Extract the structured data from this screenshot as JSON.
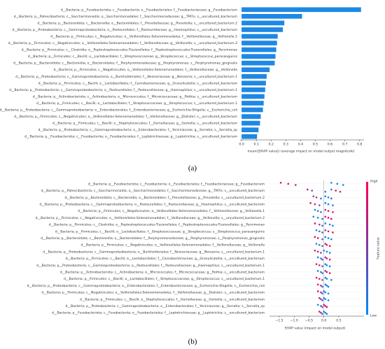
{
  "chart_data": [
    {
      "type": "bar",
      "categories": [
        "d__Bacteria; p__Fusobacteriota; c__Fusobacteriia; o__Fusobacteriales; f__Fusobacteriaceae; g__Fusobacterium",
        "d__Bacteria; p__Patescibacteria; c__Saccharimonadia; o__Saccharimonadales; f__Saccharimonadaceae; g__TM7x; s__uncultured_bacterium",
        "d__Bacteria; p__Bacteroidota; c__Bacteroidia; o__Bacteroidales; f__Prevotellaceae; g__Prevotella; s__uncultured_bacterium.2",
        "d__Bacteria; p__Proteobacteria; c__Gammaproteobacteria; o__Pasteurellales; f__Pasteurellaceae; g__Haemophilus; s__uncultured_bacterium",
        "d__Bacteria; p__Firmicutes; c__Negativicutes; o__Veillonellales-Selenomonadales; f__Veillonellaceae; g__Veillonella.1",
        "d__Bacteria; p__Firmicutes; c__Negativicutes; o__Veillonellales-Selenomonadales; f__Veillonellaceae; g__Veillonella; s__uncultured_bacterium.2",
        "d__Bacteria; p__Firmicutes; c__Clostridia; o__Peptostreptococcales-Tissierellales; f__Peptostreptococcales-Tissierellales; g__Parvimonas",
        "d__Bacteria; p__Firmicutes; c__Bacilli; o__Lactobacillales; f__Streptococcaceae; g__Streptococcus; s__Streptococcus_parasanguinis",
        "d__Bacteria; p__Bacteroidota; c__Bacteroidia; o__Bacteroidales; f__Porphyromonadaceae; g__Porphyromonas; s__Porphyromonas_gingivalis",
        "d__Bacteria; p__Firmicutes; c__Negativicutes; o__Veillonellales-Selenomonadales; f__Veillonellaceae; g__Veillonella",
        "d__Bacteria; p__Proteobacteria; c__Gammaproteobacteria; o__Burkholderiales; f__Neisseriaceae; g__Neisseria; s__uncultured_bacterium.1",
        "d__Bacteria; p__Firmicutes; c__Bacilli; o__Lactobacillales; f__Carnobacteriaceae; g__Granulicatella; s__uncultured_bacterium",
        "d__Bacteria; p__Proteobacteria; c__Gammaproteobacteria; o__Pasteurellales; f__Pasteurellaceae; g__Haemophilus; s__uncultured_bacterium.1",
        "d__Bacteria; p__Actinobacteriota; c__Actinobacteria; o__Micrococcales; f__Micrococcaceae; g__Rothia; s__uncultured_bacterium",
        "d__Bacteria; p__Firmicutes; c__Bacilli; o__Lactobacillales; f__Streptococcaceae; g__Streptococcus; s__uncultured_bacterium.1",
        "d__Bacteria; p__Proteobacteria; c__Gammaproteobacteria; o__Enterobacterales; f__Enterobacteriaceae; g__Escherichia-Shigella; s__Escherichia_coli",
        "d__Bacteria; p__Firmicutes; c__Negativicutes; o__Veillonellales-Selenomonadales; f__Veillonellaceae; g__Dialister; s__uncultured_bacterium",
        "d__Bacteria; p__Firmicutes; c__Bacilli; o__Staphylococcales; f__Gemellaceae; g__Gemella; s__uncultured_bacterium",
        "d__Bacteria; p__Proteobacteria; c__Gammaproteobacteria; o__Enterobacterales; f__Yersiniaceae; g__Serratia; s__Serratia_sp",
        "d__Bacteria; p__Fusobacteriota; c__Fusobacteriia; o__Fusobacteriales; f__Leptotrichiaceae; g__Leptotrichia; s__uncultured_bacterium"
      ],
      "values": [
        0.81,
        0.41,
        0.29,
        0.28,
        0.245,
        0.24,
        0.235,
        0.23,
        0.225,
        0.19,
        0.17,
        0.165,
        0.16,
        0.155,
        0.15,
        0.145,
        0.13,
        0.125,
        0.115,
        0.105
      ],
      "color": "#1e88e5",
      "xlim": [
        -0.01,
        0.83
      ],
      "xticks": [
        {
          "value": 0,
          "label": "0.0"
        },
        0.1,
        0.2,
        0.3,
        0.4,
        0.5,
        0.6,
        0.7,
        0.8
      ],
      "xlabel": "mean(|SHAP value|) (average impact on model output magnitude)",
      "caption": "(a)"
    },
    {
      "type": "beeswarm",
      "series": [
        {
          "values": [
            -1.45,
            -1.2,
            -0.95,
            0.25,
            0.45,
            0.65
          ],
          "feature_values": [
            1,
            0.9,
            0.6,
            0,
            0.1,
            0
          ]
        },
        {
          "values": [
            -0.55,
            -0.4,
            0.05,
            0.25,
            0.4,
            0.55
          ],
          "feature_values": [
            0.7,
            0.5,
            0.1,
            0,
            0.9,
            0.8
          ]
        },
        {
          "values": [
            -0.35,
            -0.25,
            -0.1,
            0.05,
            0.15,
            0.25
          ],
          "feature_values": [
            0.6,
            0.8,
            0.1,
            0,
            0,
            0.2
          ]
        },
        {
          "values": [
            -0.45,
            -0.3,
            -0.15,
            0.05,
            0.15,
            0.3
          ],
          "feature_values": [
            0.9,
            0.7,
            0.4,
            0,
            0.1,
            0.2
          ]
        },
        {
          "values": [
            -0.3,
            -0.2,
            -0.1,
            0.05,
            0.15,
            0.3
          ],
          "feature_values": [
            0,
            0.1,
            0.2,
            0.8,
            0.9,
            1
          ]
        },
        {
          "values": [
            -0.35,
            -0.2,
            -0.05,
            0.05,
            0.15,
            0.25
          ],
          "feature_values": [
            0,
            0.1,
            0.3,
            0.7,
            0.9,
            1
          ]
        },
        {
          "values": [
            -0.3,
            -0.15,
            -0.05,
            0.05,
            0.2,
            0.3
          ],
          "feature_values": [
            0.9,
            0.6,
            0.2,
            0,
            0.1,
            0
          ]
        },
        {
          "values": [
            -0.25,
            -0.15,
            -0.05,
            0.05,
            0.15,
            0.3
          ],
          "feature_values": [
            0,
            0.2,
            0.3,
            0.6,
            0.9,
            1
          ]
        },
        {
          "values": [
            -0.3,
            -0.2,
            -0.05,
            0.05,
            0.15,
            0.25
          ],
          "feature_values": [
            1,
            0.8,
            0.3,
            0,
            0.1,
            0
          ]
        },
        {
          "values": [
            -0.25,
            -0.15,
            -0.05,
            0.05,
            0.1,
            0.2
          ],
          "feature_values": [
            0,
            0.2,
            0.4,
            0.7,
            0.9,
            1
          ]
        },
        {
          "values": [
            -0.3,
            -0.2,
            -0.1,
            0.0,
            0.1,
            0.2
          ],
          "feature_values": [
            0.9,
            0.7,
            0.5,
            0.2,
            0,
            0
          ]
        },
        {
          "values": [
            -0.2,
            -0.1,
            -0.05,
            0.05,
            0.1,
            0.2
          ],
          "feature_values": [
            0,
            0.2,
            0.4,
            0.6,
            0.9,
            1
          ]
        },
        {
          "values": [
            -0.25,
            -0.15,
            -0.05,
            0.05,
            0.1,
            0.2
          ],
          "feature_values": [
            0.9,
            0.7,
            0.4,
            0.1,
            0,
            0
          ]
        },
        {
          "values": [
            -0.2,
            -0.1,
            -0.05,
            0.05,
            0.1,
            0.2
          ],
          "feature_values": [
            0,
            0.1,
            0.3,
            0.6,
            0.8,
            1
          ]
        },
        {
          "values": [
            -0.25,
            -0.15,
            -0.05,
            0.05,
            0.1,
            0.25
          ],
          "feature_values": [
            1,
            0.8,
            0.5,
            0.1,
            0,
            0
          ]
        },
        {
          "values": [
            -0.2,
            -0.1,
            -0.05,
            0.05,
            0.1,
            0.15
          ],
          "feature_values": [
            1,
            0.6,
            0.3,
            0,
            0.1,
            0
          ]
        },
        {
          "values": [
            -0.2,
            -0.1,
            -0.05,
            0.0,
            0.05,
            0.15
          ],
          "feature_values": [
            1,
            0.7,
            0.4,
            0.1,
            0,
            0
          ]
        },
        {
          "values": [
            -0.15,
            -0.1,
            -0.05,
            0.0,
            0.05,
            0.15
          ],
          "feature_values": [
            0.9,
            0.6,
            0.3,
            0.1,
            0,
            0
          ]
        },
        {
          "values": [
            -0.2,
            -0.1,
            -0.05,
            0.0,
            0.05,
            0.1
          ],
          "feature_values": [
            0,
            0.2,
            0.5,
            0.8,
            0.9,
            1
          ]
        },
        {
          "values": [
            -0.15,
            -0.1,
            -0.05,
            0.0,
            0.05,
            0.1
          ],
          "feature_values": [
            0.9,
            0.6,
            0.3,
            0.1,
            0,
            0
          ]
        }
      ],
      "colors": {
        "low": "#008bfb",
        "high": "#ff0051"
      },
      "xlim": [
        -1.83,
        1.35
      ],
      "xticks": [
        {
          "value": -1.5,
          "label": "−1.5"
        },
        {
          "value": -1,
          "label": "−1.0"
        },
        {
          "value": -0.5,
          "label": "−0.5"
        },
        {
          "value": 0,
          "label": "0.0"
        },
        0.5
      ],
      "xlabel": "SHAP value (impact on model output)",
      "colorbar_label": "Feature value",
      "colorbar_high": "High",
      "colorbar_low": "Low",
      "caption": "(b)"
    }
  ]
}
